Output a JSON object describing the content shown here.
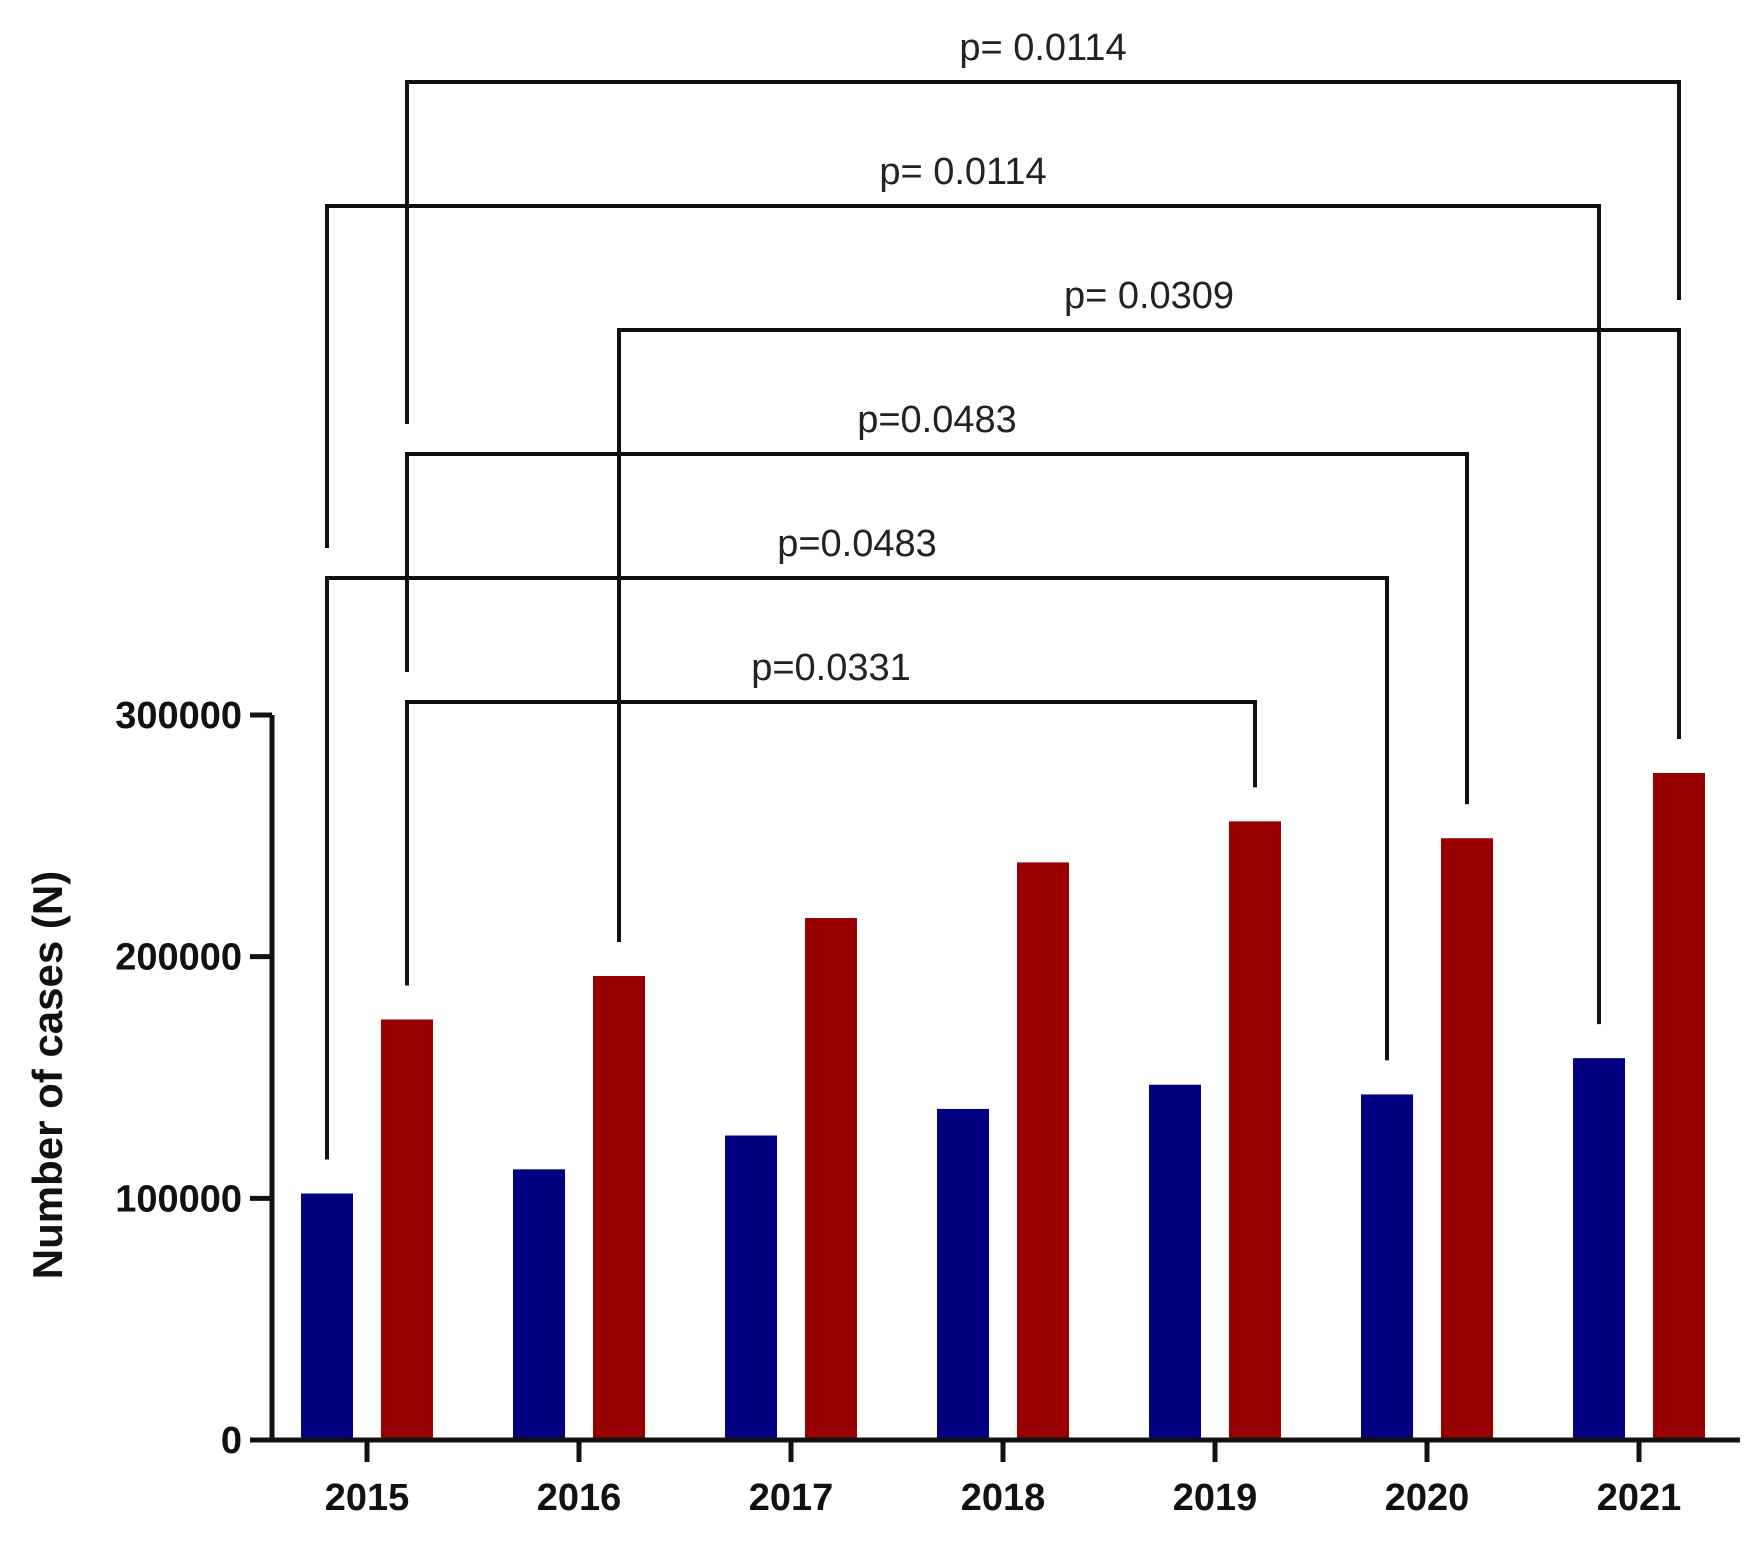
{
  "chart_data": {
    "type": "bar",
    "title": "",
    "xlabel": "",
    "ylabel": "Number of cases (N)",
    "ylim": [
      0,
      300000
    ],
    "yticks": [
      "0",
      "100000",
      "200000",
      "300000"
    ],
    "categories": [
      "2015",
      "2016",
      "2017",
      "2018",
      "2019",
      "2020",
      "2021"
    ],
    "series": [
      {
        "color": "#000080",
        "values": [
          102000,
          112000,
          126000,
          137000,
          147000,
          143000,
          158000
        ]
      },
      {
        "color": "#990000",
        "values": [
          174000,
          192000,
          216000,
          239000,
          256000,
          249000,
          276000
        ]
      }
    ],
    "grid": false,
    "legend": "none",
    "annotations": [
      {
        "label": "p=0.0331",
        "from": {
          "category": "2015",
          "series": 1
        },
        "to": {
          "category": "2019",
          "series": 1
        }
      },
      {
        "label": "p=0.0483",
        "from": {
          "category": "2015",
          "series": 0
        },
        "to": {
          "category": "2020",
          "series": 0
        }
      },
      {
        "label": "p=0.0483",
        "from": {
          "category": "2015",
          "series": 1
        },
        "to": {
          "category": "2020",
          "series": 1
        }
      },
      {
        "label": "p= 0.0309",
        "from": {
          "category": "2016",
          "series": 1
        },
        "to": {
          "category": "2021",
          "series": 1
        }
      },
      {
        "label": "p= 0.0114",
        "from": {
          "category": "2015",
          "series": 0
        },
        "to": {
          "category": "2021",
          "series": 0
        }
      },
      {
        "label": "p= 0.0114",
        "from": {
          "category": "2015",
          "series": 1
        },
        "to": {
          "category": "2021",
          "series": 1
        }
      }
    ]
  }
}
